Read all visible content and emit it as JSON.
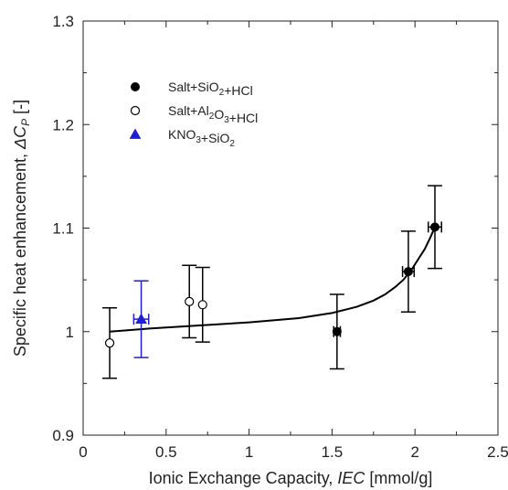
{
  "chart_data": {
    "type": "scatter",
    "xlabel": "Ionic Exchange Capacity, IEC [mmol/g]",
    "ylabel": "Specific heat enhancement, ΔCP [-]",
    "xlim": [
      0,
      2.5
    ],
    "ylim": [
      0.9,
      1.3
    ],
    "x_ticks": [
      "0",
      "0.5",
      "1",
      "1.5",
      "2",
      "2.5"
    ],
    "y_ticks": [
      "0.9",
      "1",
      "1.1",
      "1.2",
      "1.3"
    ],
    "grid": false,
    "legend_position": "top-left",
    "series": [
      {
        "name": "Salt+SiO2+HCl",
        "marker": "filled-circle",
        "color": "#000000",
        "points": [
          {
            "x": 1.53,
            "y": 1.0,
            "yerr": 0.036,
            "xerr": 0.02
          },
          {
            "x": 1.96,
            "y": 1.058,
            "yerr": 0.039,
            "xerr": 0.035
          },
          {
            "x": 2.12,
            "y": 1.101,
            "yerr": 0.04,
            "xerr": 0.04
          }
        ]
      },
      {
        "name": "Salt+Al2O3+HCl",
        "marker": "open-circle",
        "color": "#000000",
        "points": [
          {
            "x": 0.16,
            "y": 0.989,
            "yerr": 0.034,
            "xerr": 0.0
          },
          {
            "x": 0.64,
            "y": 1.029,
            "yerr": 0.035,
            "xerr": 0.0
          },
          {
            "x": 0.72,
            "y": 1.026,
            "yerr": 0.036,
            "xerr": 0.0
          }
        ]
      },
      {
        "name": "KNO3+SiO2",
        "marker": "filled-triangle",
        "color": "#1f1fd6",
        "points": [
          {
            "x": 0.35,
            "y": 1.012,
            "yerr": 0.037,
            "xerr": 0.045
          }
        ]
      }
    ],
    "fit_curve": {
      "color": "#000000",
      "x": [
        0.16,
        0.4,
        0.7,
        1.0,
        1.3,
        1.5,
        1.65,
        1.75,
        1.82,
        1.88,
        1.93,
        1.98,
        2.02,
        2.06,
        2.09,
        2.12
      ],
      "y": [
        1.0,
        1.003,
        1.006,
        1.009,
        1.013,
        1.018,
        1.024,
        1.03,
        1.036,
        1.043,
        1.05,
        1.06,
        1.07,
        1.08,
        1.09,
        1.101
      ]
    }
  }
}
